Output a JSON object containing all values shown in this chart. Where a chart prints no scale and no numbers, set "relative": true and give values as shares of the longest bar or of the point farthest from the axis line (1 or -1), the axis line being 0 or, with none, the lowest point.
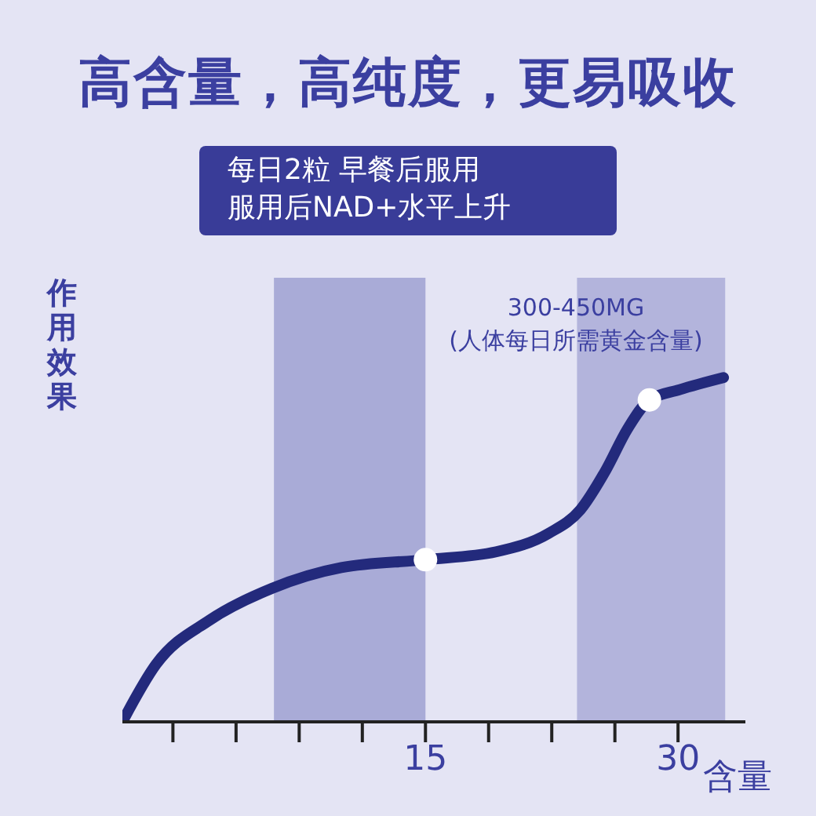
{
  "chart_data": {
    "type": "line",
    "title": "高含量，高纯度，更易吸收",
    "subtitle": "每日2粒 早餐后服用",
    "ylabel": "作用效果",
    "xlabel": "含量",
    "relative": true,
    "grid": false,
    "xlim": [
      -3,
      34
    ],
    "xticks": [
      {
        "value": 0,
        "label": null
      },
      {
        "value": 3.75,
        "label": null
      },
      {
        "value": 7.5,
        "label": null
      },
      {
        "value": 11.25,
        "label": null
      },
      15,
      {
        "value": 18.75,
        "label": null
      },
      {
        "value": 22.5,
        "label": null
      },
      {
        "value": 26.25,
        "label": null
      },
      30
    ],
    "bands": [
      {
        "axis": "x",
        "from": 6,
        "to": 15,
        "color": "#a9abd7"
      },
      {
        "axis": "x",
        "from": 24,
        "to": 32.8,
        "color": "#b3b4dc"
      }
    ],
    "annotations": [
      "服用后NAD+水平上升",
      "300-450MG",
      "(人体每日所需黄金含量)"
    ],
    "series": [
      {
        "color": "#232a7c",
        "marker": "none",
        "x": [
          -3,
          -1,
          2.2,
          5.9,
          10,
          15,
          19.2,
          22.3,
          24.2,
          25.7,
          27,
          28.3,
          30.1,
          32.7
        ],
        "values": [
          0,
          0.167,
          0.296,
          0.388,
          0.448,
          0.471,
          0.494,
          0.547,
          0.616,
          0.73,
          0.851,
          0.935,
          0.965,
          1
        ]
      },
      {
        "type": "scatter",
        "color": "#ffffff",
        "marker": "circle",
        "x": [
          15,
          28.3
        ],
        "values": [
          0.471,
          0.935
        ]
      }
    ]
  }
}
